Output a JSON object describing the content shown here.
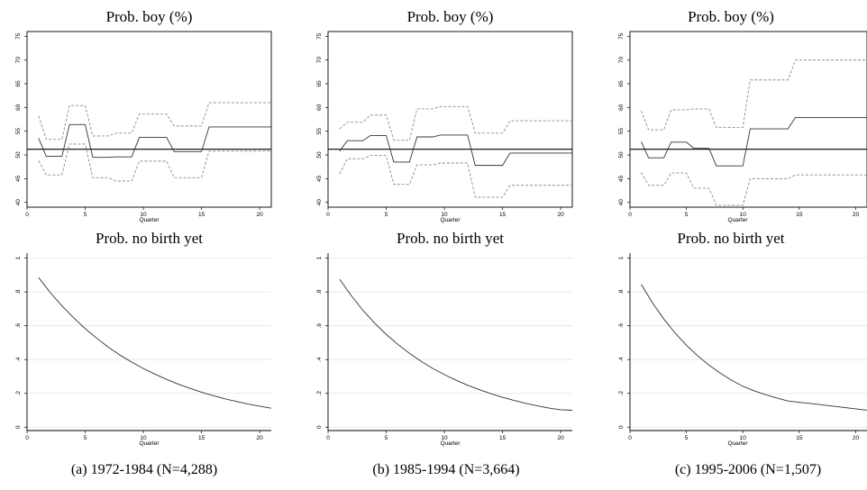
{
  "chart_data": [
    {
      "id": "a_boy",
      "type": "line",
      "title": "Prob. boy (%)",
      "xlabel": "Quarter",
      "xlim": [
        0,
        21
      ],
      "ylim": [
        39,
        76
      ],
      "xticks": [
        "0",
        "5",
        "10",
        "15",
        "20"
      ],
      "yticks": [
        "40",
        "45",
        "50",
        "55",
        "60",
        "65",
        "70",
        "75"
      ],
      "reference_line": 51.2,
      "x": [
        1,
        2,
        3,
        4,
        5,
        6,
        7,
        8,
        9,
        10,
        11,
        12,
        13,
        14,
        15,
        16,
        17,
        18,
        19,
        20,
        21
      ],
      "series": [
        {
          "role": "estimate",
          "values": [
            53.5,
            49.7,
            49.7,
            56.4,
            56.4,
            49.5,
            49.5,
            49.6,
            49.6,
            53.7,
            53.7,
            53.7,
            50.7,
            50.7,
            50.7,
            55.9,
            55.9,
            55.9,
            55.9,
            55.9,
            55.9
          ]
        },
        {
          "role": "upper",
          "values": [
            58.2,
            53.3,
            53.3,
            60.4,
            60.4,
            54.0,
            54.0,
            54.6,
            54.6,
            58.6,
            58.6,
            58.6,
            56.1,
            56.1,
            56.1,
            61.0,
            61.0,
            61.0,
            61.0,
            61.0,
            61.0
          ]
        },
        {
          "role": "lower",
          "values": [
            48.8,
            45.8,
            45.8,
            52.3,
            52.3,
            45.2,
            45.2,
            44.5,
            44.5,
            48.7,
            48.7,
            48.7,
            45.2,
            45.2,
            45.2,
            50.8,
            50.8,
            50.8,
            50.8,
            50.8,
            50.8
          ]
        }
      ]
    },
    {
      "id": "b_boy",
      "type": "line",
      "title": "Prob. boy (%)",
      "xlabel": "Quarter",
      "xlim": [
        0,
        21
      ],
      "ylim": [
        39,
        76
      ],
      "xticks": [
        "0",
        "5",
        "10",
        "15",
        "20"
      ],
      "yticks": [
        "40",
        "45",
        "50",
        "55",
        "60",
        "65",
        "70",
        "75"
      ],
      "reference_line": 51.2,
      "x": [
        1,
        2,
        3,
        4,
        5,
        6,
        7,
        8,
        9,
        10,
        11,
        12,
        13,
        14,
        15,
        16,
        17,
        18,
        19,
        20,
        21
      ],
      "series": [
        {
          "role": "estimate",
          "values": [
            50.8,
            53.0,
            53.0,
            54.1,
            54.1,
            48.5,
            48.5,
            53.8,
            53.8,
            54.2,
            54.2,
            54.2,
            47.8,
            47.8,
            47.8,
            50.4,
            50.4,
            50.4,
            50.4,
            50.4,
            50.4
          ]
        },
        {
          "role": "upper",
          "values": [
            55.5,
            56.9,
            56.9,
            58.4,
            58.4,
            53.1,
            53.1,
            59.7,
            59.7,
            60.2,
            60.2,
            60.2,
            54.6,
            54.6,
            54.6,
            57.2,
            57.2,
            57.2,
            57.2,
            57.2,
            57.2
          ]
        },
        {
          "role": "lower",
          "values": [
            46.0,
            49.2,
            49.2,
            49.9,
            49.9,
            43.8,
            43.8,
            47.9,
            47.9,
            48.3,
            48.3,
            48.3,
            41.1,
            41.1,
            41.1,
            43.6,
            43.6,
            43.6,
            43.6,
            43.6,
            43.6
          ]
        }
      ]
    },
    {
      "id": "c_boy",
      "type": "line",
      "title": "Prob. boy (%)",
      "xlabel": "Quarter",
      "xlim": [
        0,
        21
      ],
      "ylim": [
        39,
        76
      ],
      "xticks": [
        "0",
        "5",
        "10",
        "15",
        "20"
      ],
      "yticks": [
        "40",
        "45",
        "50",
        "55",
        "60",
        "65",
        "70",
        "75"
      ],
      "reference_line": 51.2,
      "x": [
        1,
        2,
        3,
        4,
        5,
        6,
        7,
        8,
        9,
        10,
        11,
        12,
        13,
        14,
        15,
        16,
        17,
        18,
        19,
        20,
        21
      ],
      "series": [
        {
          "role": "estimate",
          "values": [
            52.8,
            49.4,
            49.4,
            52.7,
            52.7,
            51.4,
            51.4,
            47.7,
            47.7,
            47.7,
            55.5,
            55.5,
            55.5,
            55.5,
            57.9,
            57.9,
            57.9,
            57.9,
            57.9,
            57.9,
            57.9
          ]
        },
        {
          "role": "upper",
          "values": [
            59.3,
            55.3,
            55.3,
            59.5,
            59.5,
            59.7,
            59.7,
            55.8,
            55.8,
            55.8,
            65.8,
            65.8,
            65.8,
            65.8,
            70.0,
            70.0,
            70.0,
            70.0,
            70.0,
            70.0,
            70.0
          ]
        },
        {
          "role": "lower",
          "values": [
            46.3,
            43.6,
            43.6,
            46.2,
            46.2,
            43.0,
            43.0,
            39.4,
            39.4,
            39.4,
            45.0,
            45.0,
            45.0,
            45.0,
            45.8,
            45.8,
            45.8,
            45.8,
            45.8,
            45.8,
            45.8
          ]
        }
      ]
    },
    {
      "id": "a_nobirth",
      "type": "line",
      "title": "Prob. no birth yet",
      "xlabel": "Quarter",
      "xlim": [
        0,
        21
      ],
      "ylim": [
        -0.02,
        1.03
      ],
      "xticks": [
        "0",
        "5",
        "10",
        "15",
        "20"
      ],
      "yticks": [
        "0",
        ".2",
        ".4",
        ".6",
        ".8",
        "1"
      ],
      "x": [
        1,
        2,
        3,
        4,
        5,
        6,
        7,
        8,
        9,
        10,
        11,
        12,
        13,
        14,
        15,
        16,
        17,
        18,
        19,
        20,
        21
      ],
      "series": [
        {
          "role": "survival",
          "values": [
            0.885,
            0.796,
            0.718,
            0.648,
            0.583,
            0.526,
            0.473,
            0.426,
            0.385,
            0.347,
            0.314,
            0.283,
            0.255,
            0.23,
            0.207,
            0.187,
            0.168,
            0.152,
            0.137,
            0.124,
            0.112
          ]
        }
      ]
    },
    {
      "id": "b_nobirth",
      "type": "line",
      "title": "Prob. no birth yet",
      "xlabel": "Quarter",
      "xlim": [
        0,
        21
      ],
      "ylim": [
        -0.02,
        1.03
      ],
      "xticks": [
        "0",
        "5",
        "10",
        "15",
        "20"
      ],
      "yticks": [
        "0",
        ".2",
        ".4",
        ".6",
        ".8",
        "1"
      ],
      "x": [
        1,
        2,
        3,
        4,
        5,
        6,
        7,
        8,
        9,
        10,
        11,
        12,
        13,
        14,
        15,
        16,
        17,
        18,
        19,
        20,
        21
      ],
      "series": [
        {
          "role": "survival",
          "values": [
            0.875,
            0.778,
            0.691,
            0.616,
            0.549,
            0.49,
            0.437,
            0.39,
            0.348,
            0.311,
            0.278,
            0.248,
            0.222,
            0.198,
            0.177,
            0.158,
            0.141,
            0.126,
            0.113,
            0.103,
            0.1
          ]
        }
      ]
    },
    {
      "id": "c_nobirth",
      "type": "line",
      "title": "Prob. no birth yet",
      "xlabel": "Quarter",
      "xlim": [
        0,
        21
      ],
      "ylim": [
        -0.02,
        1.03
      ],
      "xticks": [
        "0",
        "5",
        "10",
        "15",
        "20"
      ],
      "yticks": [
        "0",
        ".2",
        ".4",
        ".6",
        ".8",
        "1"
      ],
      "x": [
        1,
        2,
        3,
        4,
        5,
        6,
        7,
        8,
        9,
        10,
        11,
        12,
        13,
        14,
        15,
        16,
        17,
        18,
        19,
        20,
        21
      ],
      "series": [
        {
          "role": "survival",
          "values": [
            0.845,
            0.735,
            0.64,
            0.557,
            0.485,
            0.422,
            0.367,
            0.32,
            0.278,
            0.242,
            0.215,
            0.193,
            0.173,
            0.155,
            0.147,
            0.14,
            0.132,
            0.124,
            0.116,
            0.108,
            0.1
          ]
        }
      ]
    }
  ],
  "captions": [
    "(a) 1972-1984 (N=4,288)",
    "(b) 1985-1994 (N=3,664)",
    "(c) 1995-2006 (N=1,507)"
  ]
}
